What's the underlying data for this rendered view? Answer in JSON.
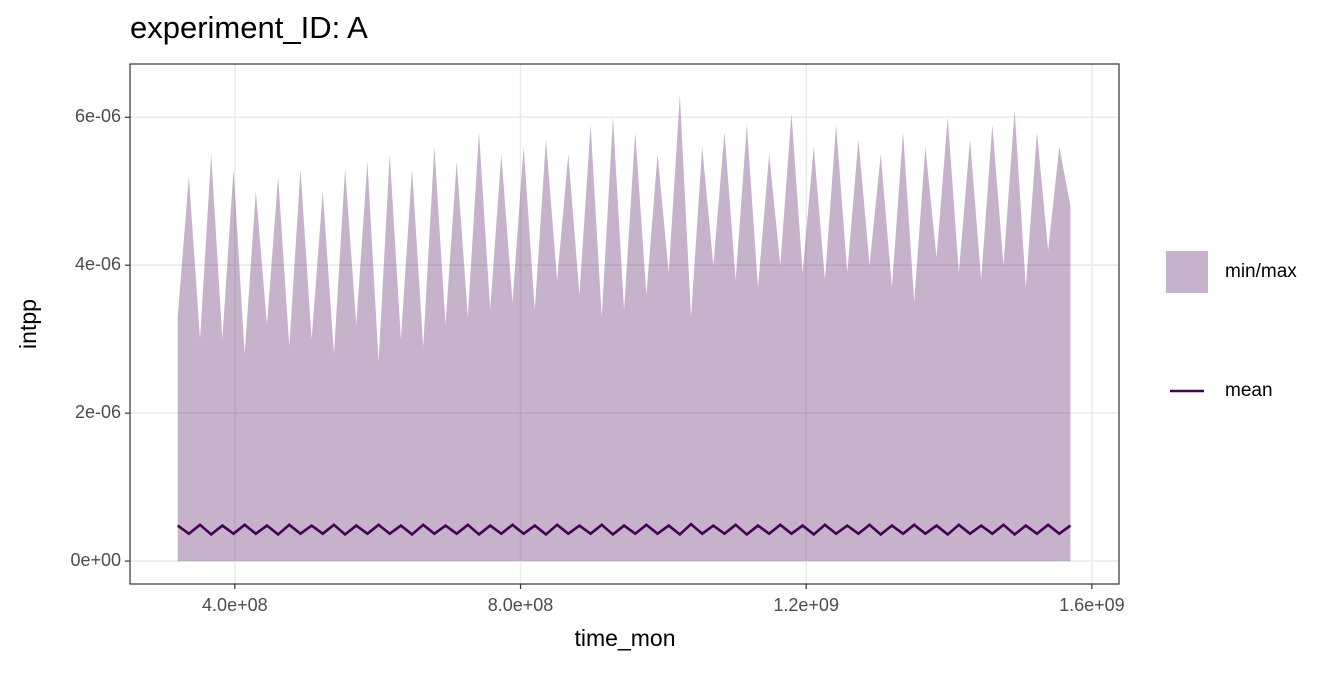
{
  "chart_data": {
    "type": "area",
    "title": "experiment_ID: A",
    "x_label": "time_mon",
    "y_label": "intpp",
    "xlim": [
      253200000,
      1638000000
    ],
    "ylim": [
      -3.1e-07,
      6.72e-06
    ],
    "xticks": [
      {
        "value": 400000000,
        "label": "4.0e+08"
      },
      {
        "value": 800000000,
        "label": "8.0e+08"
      },
      {
        "value": 1200000000,
        "label": "1.2e+09"
      },
      {
        "value": 1600000000,
        "label": "1.6e+09"
      }
    ],
    "yticks": [
      {
        "value": 0,
        "label": "0e+00"
      },
      {
        "value": 2e-06,
        "label": "2e-06"
      },
      {
        "value": 4e-06,
        "label": "4e-06"
      },
      {
        "value": 6e-06,
        "label": "6e-06"
      }
    ],
    "grid": true,
    "x": [
      320000000,
      335625000,
      351250000,
      366875000,
      382500000,
      398125000,
      413750000,
      429375000,
      445000000,
      460625000,
      476250000,
      491875000,
      507500000,
      523125000,
      538750000,
      554375000,
      570000000,
      585625000,
      601250000,
      616875000,
      632500000,
      648125000,
      663750000,
      679375000,
      695000000,
      710625000,
      726250000,
      741875000,
      757500000,
      773125000,
      788750000,
      804375000,
      820000000,
      835625000,
      851250000,
      866875000,
      882500000,
      898125000,
      913750000,
      929375000,
      945000000,
      960625000,
      976250000,
      991875000,
      1007500000,
      1023125000,
      1038750000,
      1054375000,
      1070000000,
      1085625000,
      1101250000,
      1116875000,
      1132500000,
      1148125000,
      1163750000,
      1179375000,
      1195000000,
      1210625000,
      1226250000,
      1241875000,
      1257500000,
      1273125000,
      1288750000,
      1304375000,
      1320000000,
      1335625000,
      1351250000,
      1366875000,
      1382500000,
      1398125000,
      1413750000,
      1429375000,
      1445000000,
      1460625000,
      1476250000,
      1491875000,
      1507500000,
      1523125000,
      1538750000,
      1554375000,
      1570000000
    ],
    "series": [
      {
        "name": "min/max",
        "kind": "ribbon",
        "color": "#440154",
        "opacity": 0.3,
        "min": [
          0,
          0,
          0,
          0,
          0,
          0,
          0,
          0,
          0,
          0,
          0,
          0,
          0,
          0,
          0,
          0,
          0,
          0,
          0,
          0,
          0,
          0,
          0,
          0,
          0,
          0,
          0,
          0,
          0,
          0,
          0,
          0,
          0,
          0,
          0,
          0,
          0,
          0,
          0,
          0,
          0,
          0,
          0,
          0,
          0,
          0,
          0,
          0,
          0,
          0,
          0,
          0,
          0,
          0,
          0,
          0,
          0,
          0,
          0,
          0,
          0,
          0,
          0,
          0,
          0,
          0,
          0,
          0,
          0,
          0,
          0,
          0,
          0,
          0,
          0,
          0,
          0,
          0,
          0,
          0,
          0
        ],
        "max": [
          3.3e-06,
          5.2e-06,
          3e-06,
          5.5e-06,
          3e-06,
          5.3e-06,
          2.8e-06,
          5e-06,
          3.2e-06,
          5.2e-06,
          2.9e-06,
          5.3e-06,
          3e-06,
          5e-06,
          2.8e-06,
          5.3e-06,
          3.2e-06,
          5.4e-06,
          2.7e-06,
          5.5e-06,
          3e-06,
          5.3e-06,
          2.9e-06,
          5.6e-06,
          3.2e-06,
          5.4e-06,
          3.3e-06,
          5.8e-06,
          3.4e-06,
          5.5e-06,
          3.5e-06,
          5.6e-06,
          3.4e-06,
          5.7e-06,
          3.8e-06,
          5.5e-06,
          3.6e-06,
          5.9e-06,
          3.3e-06,
          6e-06,
          3.4e-06,
          5.8e-06,
          3.6e-06,
          5.5e-06,
          3.9e-06,
          6.3e-06,
          3.3e-06,
          5.6e-06,
          4e-06,
          5.8e-06,
          3.8e-06,
          5.9e-06,
          3.7e-06,
          5.5e-06,
          4e-06,
          6.05e-06,
          3.9e-06,
          5.6e-06,
          3.8e-06,
          5.9e-06,
          3.9e-06,
          5.7e-06,
          4e-06,
          5.5e-06,
          3.7e-06,
          5.8e-06,
          3.5e-06,
          5.6e-06,
          4.1e-06,
          6e-06,
          3.9e-06,
          5.7e-06,
          3.8e-06,
          5.9e-06,
          4e-06,
          6.1e-06,
          3.7e-06,
          5.8e-06,
          4.2e-06,
          5.6e-06,
          4.8e-06
        ]
      },
      {
        "name": "mean",
        "kind": "line",
        "color": "#440154",
        "values": [
          4.8e-07,
          3.7e-07,
          4.9e-07,
          3.6e-07,
          4.8e-07,
          3.7e-07,
          4.9e-07,
          3.7e-07,
          4.8e-07,
          3.6e-07,
          4.9e-07,
          3.7e-07,
          4.8e-07,
          3.7e-07,
          4.9e-07,
          3.6e-07,
          4.8e-07,
          3.7e-07,
          4.9e-07,
          3.7e-07,
          4.8e-07,
          3.6e-07,
          4.9e-07,
          3.7e-07,
          4.8e-07,
          3.7e-07,
          4.9e-07,
          3.6e-07,
          4.8e-07,
          3.7e-07,
          4.9e-07,
          3.7e-07,
          4.8e-07,
          3.6e-07,
          4.9e-07,
          3.7e-07,
          4.8e-07,
          3.7e-07,
          4.9e-07,
          3.6e-07,
          4.8e-07,
          3.7e-07,
          4.9e-07,
          3.7e-07,
          4.8e-07,
          3.6e-07,
          5e-07,
          3.7e-07,
          4.8e-07,
          3.7e-07,
          4.9e-07,
          3.6e-07,
          4.8e-07,
          3.7e-07,
          4.9e-07,
          3.7e-07,
          4.8e-07,
          3.6e-07,
          4.9e-07,
          3.7e-07,
          4.8e-07,
          3.7e-07,
          4.9e-07,
          3.6e-07,
          4.8e-07,
          3.7e-07,
          4.9e-07,
          3.7e-07,
          4.8e-07,
          3.6e-07,
          4.9e-07,
          3.7e-07,
          4.8e-07,
          3.7e-07,
          4.9e-07,
          3.6e-07,
          4.8e-07,
          3.7e-07,
          4.9e-07,
          3.7e-07,
          4.8e-07
        ]
      }
    ]
  }
}
